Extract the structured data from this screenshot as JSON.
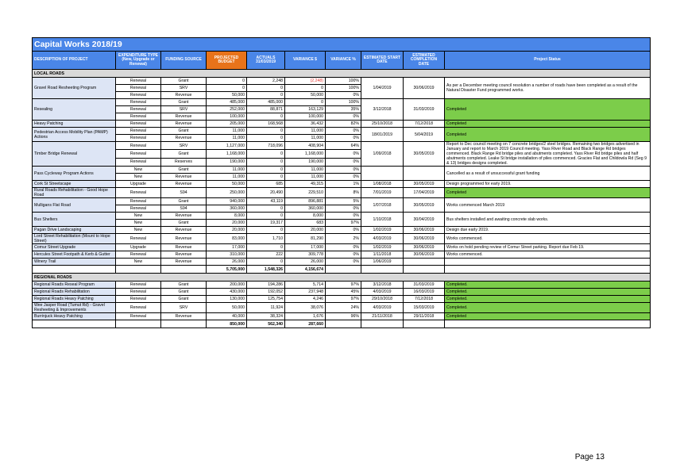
{
  "title": "Capital Works 2018/19",
  "headers": [
    "DESCRIPTION OF PROJECT",
    "EXPENDITURE TYPE (New, Upgrade or Renewal)",
    "FUNDING SOURCE",
    "PROJECTED BUDGET",
    "ACTUALS 31/03/2019",
    "VARIANCE $",
    "VARIANCE %",
    "ESTIMATED START DATE",
    "ESTIMATED COMPLETION DATE",
    "Project Status"
  ],
  "sections": {
    "local": "LOCAL ROADS",
    "regional": "REGIONAL ROADS"
  },
  "projects": [
    {
      "desc": "Gravel Road Resheeting Program",
      "start": "1/04/2019",
      "end": "30/06/2019",
      "status": "As per a December meeting council resolution a number of roads have been completed as a result of the Natural Disaster Fund programmed works.",
      "green": false,
      "rows": [
        [
          "Renewal",
          "Grant",
          "0",
          "2,248",
          "(2,248)",
          "100%"
        ],
        [
          "Renewal",
          "SRV",
          "0",
          "0",
          "0",
          "100%"
        ],
        [
          "Renewal",
          "Revenue",
          "50,000",
          "0",
          "50,000",
          "0%"
        ]
      ]
    },
    {
      "desc": "Resealing",
      "start": "3/12/2018",
      "end": "31/03/2019",
      "status": "Completed",
      "green": true,
      "rows": [
        [
          "Renewal",
          "Grant",
          "485,000",
          "485,000",
          "0",
          "100%"
        ],
        [
          "Renewal",
          "SRV",
          "252,000",
          "88,871",
          "163,129",
          "35%"
        ],
        [
          "Renewal",
          "Revenue",
          "100,000",
          "0",
          "100,000",
          "0%"
        ]
      ]
    },
    {
      "desc": "Heavy Patching",
      "start": "25/10/2018",
      "end": "7/12/2018",
      "status": "Completed",
      "green": true,
      "rows": [
        [
          "Renewal",
          "Revenue",
          "205,000",
          "168,568",
          "36,432",
          "82%"
        ]
      ]
    },
    {
      "desc": "Pedestrian Access Mobility Plan (PAMP) Actions",
      "start": "18/01/2019",
      "end": "5/04/2019",
      "status": "Completed",
      "green": true,
      "rows": [
        [
          "Renewal",
          "Grant",
          "11,000",
          "0",
          "11,000",
          "0%"
        ],
        [
          "Renewal",
          "Revenue",
          "11,000",
          "0",
          "11,000",
          "0%"
        ]
      ]
    },
    {
      "desc": "Timber Bridge Renewal",
      "start": "1/09/2018",
      "end": "30/05/2019",
      "status": "Report to Dec council meeting on 7 concrete bridges/2 steel bridges. Remaining two bridges advertised in January and report to March 2019 Council meeting. Yass River Road and Black Range Rd bridges commenced. Black Range Rd bridge piles and abutments completed. Yass River Rd bridge piles and half abutments completed. Leake St bridge installation of piles commenced. Gracies Flat and Childowla Rd (Seg 9 & 13) bridges designs completed.",
      "green": false,
      "rows": [
        [
          "Renewal",
          "SRV",
          "1,127,000",
          "718,096",
          "408,904",
          "64%"
        ],
        [
          "Renewal",
          "Grant",
          "1,168,000",
          "0",
          "1,168,000",
          "0%"
        ],
        [
          "Renewal",
          "Reserves",
          "190,000",
          "0",
          "190,000",
          "0%"
        ]
      ]
    },
    {
      "desc": "Pass Cycleway Program Actions",
      "start": "",
      "end": "",
      "status": "Cancelled as a result of unsuccessful grant funding",
      "green": false,
      "rows": [
        [
          "New",
          "Grant",
          "11,000",
          "0",
          "11,000",
          "0%"
        ],
        [
          "New",
          "Revenue",
          "11,000",
          "0",
          "11,000",
          "0%"
        ]
      ]
    },
    {
      "desc": "Cork St Streetscape",
      "start": "1/08/2018",
      "end": "30/05/2019",
      "status": "Design programmed for early 2019.",
      "green": false,
      "rows": [
        [
          "Upgrade",
          "Revenue",
          "50,000",
          "685",
          "49,315",
          "1%"
        ]
      ]
    },
    {
      "desc": "Rural Roads Rehabilitation - Good Hope Road",
      "start": "7/01/2019",
      "end": "17/04/2019",
      "status": "Completed",
      "green": true,
      "rows": [
        [
          "Renewal",
          "S94",
          "250,000",
          "20,490",
          "229,510",
          "8%"
        ]
      ]
    },
    {
      "desc": "Mulligans Flat Road",
      "start": "1/07/2018",
      "end": "30/05/2019",
      "status": "Works commenced March 2019",
      "green": false,
      "rows": [
        [
          "Renewal",
          "Grant",
          "940,000",
          "43,119",
          "896,881",
          "5%"
        ],
        [
          "Renewal",
          "S94",
          "360,000",
          "0",
          "360,000",
          "0%"
        ]
      ]
    },
    {
      "desc": "Bus Shelters",
      "start": "1/10/2018",
      "end": "30/04/2019",
      "status": "Bus shelters installed and awaiting concrete slab works.",
      "green": false,
      "rows": [
        [
          "New",
          "Revenue",
          "8,000",
          "0",
          "8,000",
          "0%"
        ],
        [
          "New",
          "Grant",
          "20,000",
          "19,317",
          "683",
          "97%"
        ]
      ]
    },
    {
      "desc": "Pagan Drive Landscaping",
      "start": "1/02/2019",
      "end": "30/06/2019",
      "status": "Design due early 2019.",
      "green": false,
      "rows": [
        [
          "New",
          "Revenue",
          "20,000",
          "0",
          "20,000",
          "0%"
        ]
      ]
    },
    {
      "desc": "Lord Street Rehabilitation (Mount to Hope Street)",
      "start": "4/03/2019",
      "end": "30/06/2019",
      "status": "Works commenced.",
      "green": false,
      "rows": [
        [
          "Renewal",
          "Revenue",
          "83,000",
          "1,710",
          "81,290",
          "2%"
        ]
      ]
    },
    {
      "desc": "Comur Street Upgrade",
      "start": "1/02/2019",
      "end": "30/06/2019",
      "status": "Works on hold pending review of Comur Street parking. Report due Feb 19.",
      "green": false,
      "rows": [
        [
          "Upgrade",
          "Revenue",
          "17,000",
          "0",
          "17,000",
          "0%"
        ]
      ]
    },
    {
      "desc": "Hercules Street Footpath & Kerb & Gutter",
      "start": "1/11/2018",
      "end": "30/06/2019",
      "status": "Works commenced.",
      "green": false,
      "rows": [
        [
          "Renewal",
          "Revenue",
          "310,000",
          "222",
          "309,778",
          "0%"
        ]
      ]
    },
    {
      "desc": "Winery Trail",
      "start": "1/06/2019",
      "end": "",
      "status": "",
      "green": false,
      "rows": [
        [
          "New",
          "Revenue",
          "26,000",
          "0",
          "26,000",
          "0%"
        ]
      ]
    }
  ],
  "local_total": [
    "5,705,000",
    "1,548,326",
    "4,156,674"
  ],
  "regional": [
    {
      "desc": "Regional Roads Reseal Program",
      "start": "3/12/2018",
      "end": "31/03/2019",
      "status": "Completed.",
      "green": true,
      "rows": [
        [
          "Renewal",
          "Grant",
          "200,000",
          "194,286",
          "5,714",
          "97%"
        ]
      ]
    },
    {
      "desc": "Regional Roads Rehabilitation",
      "start": "4/03/2019",
      "end": "16/03/2019",
      "status": "Completed.",
      "green": true,
      "rows": [
        [
          "Renewal",
          "Grant",
          "430,000",
          "192,052",
          "237,948",
          "45%"
        ]
      ]
    },
    {
      "desc": "Regional Roads Heavy Patching",
      "start": "29/10/2018",
      "end": "7/12/2018",
      "status": "Completed.",
      "green": true,
      "rows": [
        [
          "Renewal",
          "Grant",
          "130,000",
          "125,754",
          "4,246",
          "97%"
        ]
      ]
    },
    {
      "desc": "Wee Jasper Road (Tumut Rd) - Gravel Resheeting & Improvements",
      "start": "4/03/2019",
      "end": "15/03/2019",
      "status": "Completed.",
      "green": true,
      "rows": [
        [
          "Renewal",
          "SRV",
          "50,000",
          "11,924",
          "38,076",
          "24%"
        ]
      ]
    },
    {
      "desc": "Burrinjuck Heavy Patching",
      "start": "21/11/2018",
      "end": "29/11/2018",
      "status": "Completed",
      "green": true,
      "rows": [
        [
          "Renewal",
          "Revenue",
          "40,000",
          "38,324",
          "1,676",
          "96%"
        ]
      ]
    }
  ],
  "regional_total": [
    "850,000",
    "562,340",
    "287,660"
  ],
  "page_number": "Page 13"
}
